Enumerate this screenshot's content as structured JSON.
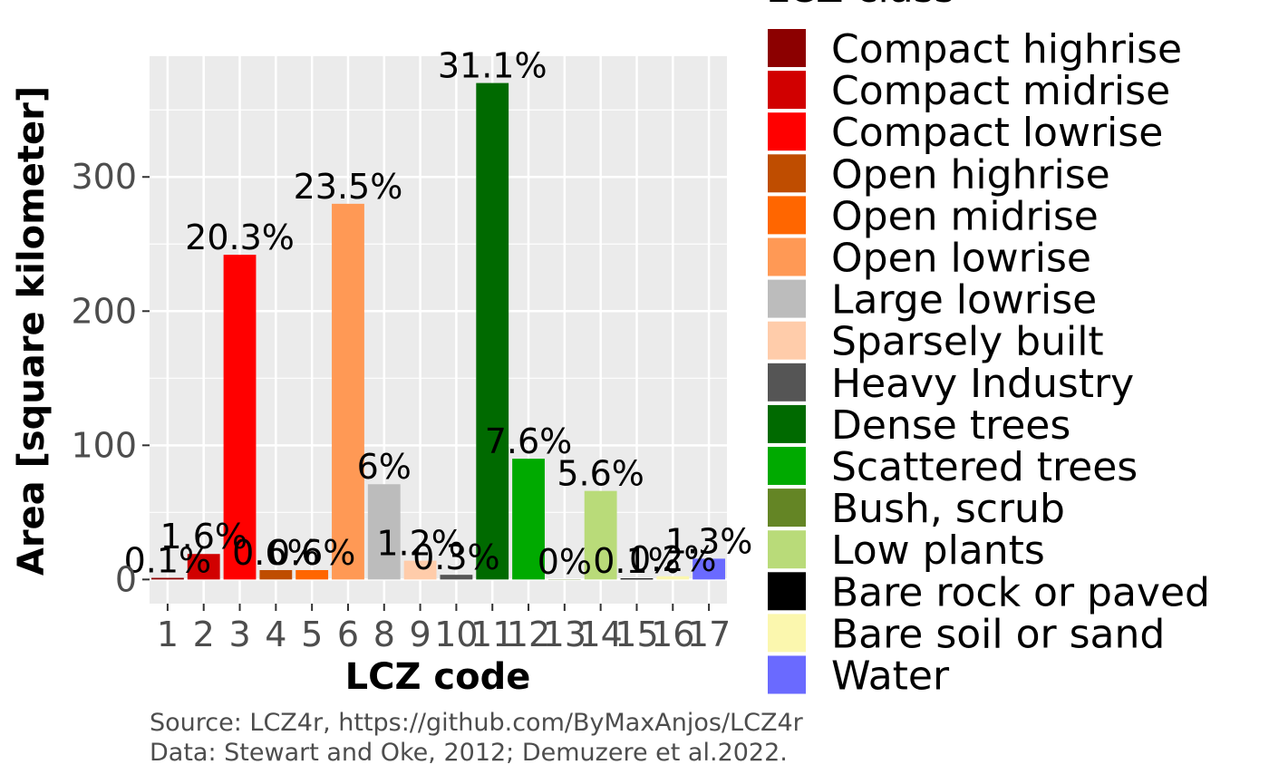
{
  "chart_data": {
    "type": "bar",
    "xlabel": "LCZ code",
    "ylabel": "Area [square kilometer]",
    "ylim": [
      -18,
      390
    ],
    "yticks": [
      0,
      100,
      200,
      300
    ],
    "grid": true,
    "legend_title": "LCZ class",
    "legend_position": "right",
    "categories": [
      "1",
      "2",
      "3",
      "4",
      "5",
      "6",
      "8",
      "9",
      "10",
      "11",
      "12",
      "13",
      "14",
      "15",
      "16",
      "17"
    ],
    "values": [
      1.2,
      19,
      242,
      7,
      7,
      280,
      71,
      14,
      3.5,
      370,
      90,
      0.2,
      66,
      0.8,
      2.4,
      15.5
    ],
    "labels": [
      "0.1%",
      "1.6%",
      "20.3%",
      "0.6%",
      "0.6%",
      "23.5%",
      "6%",
      "1.2%",
      "0.3%",
      "31.1%",
      "7.6%",
      "0%",
      "5.6%",
      "0.1%",
      "0.2%",
      "1.3%"
    ],
    "colors": [
      "#8c0000",
      "#d10000",
      "#ff0000",
      "#bf4d00",
      "#ff6600",
      "#ff9955",
      "#bcbcbc",
      "#ffccaa",
      "#555555",
      "#006a00",
      "#00aa00",
      "#648525",
      "#b9db79",
      "#000000",
      "#fbf7ae",
      "#6a6aff"
    ],
    "series_names": [
      "Compact highrise",
      "Compact midrise",
      "Compact lowrise",
      "Open highrise",
      "Open midrise",
      "Open lowrise",
      "Large lowrise",
      "Sparsely built",
      "Heavy Industry",
      "Dense trees",
      "Scattered trees",
      "Bush, scrub",
      "Low plants",
      "Bare rock or paved",
      "Bare soil or sand",
      "Water"
    ]
  },
  "caption": {
    "line1": "Source: LCZ4r, https://github.com/ByMaxAnjos/LCZ4r",
    "line2": "Data: Stewart and Oke, 2012; Demuzere et al.2022."
  }
}
